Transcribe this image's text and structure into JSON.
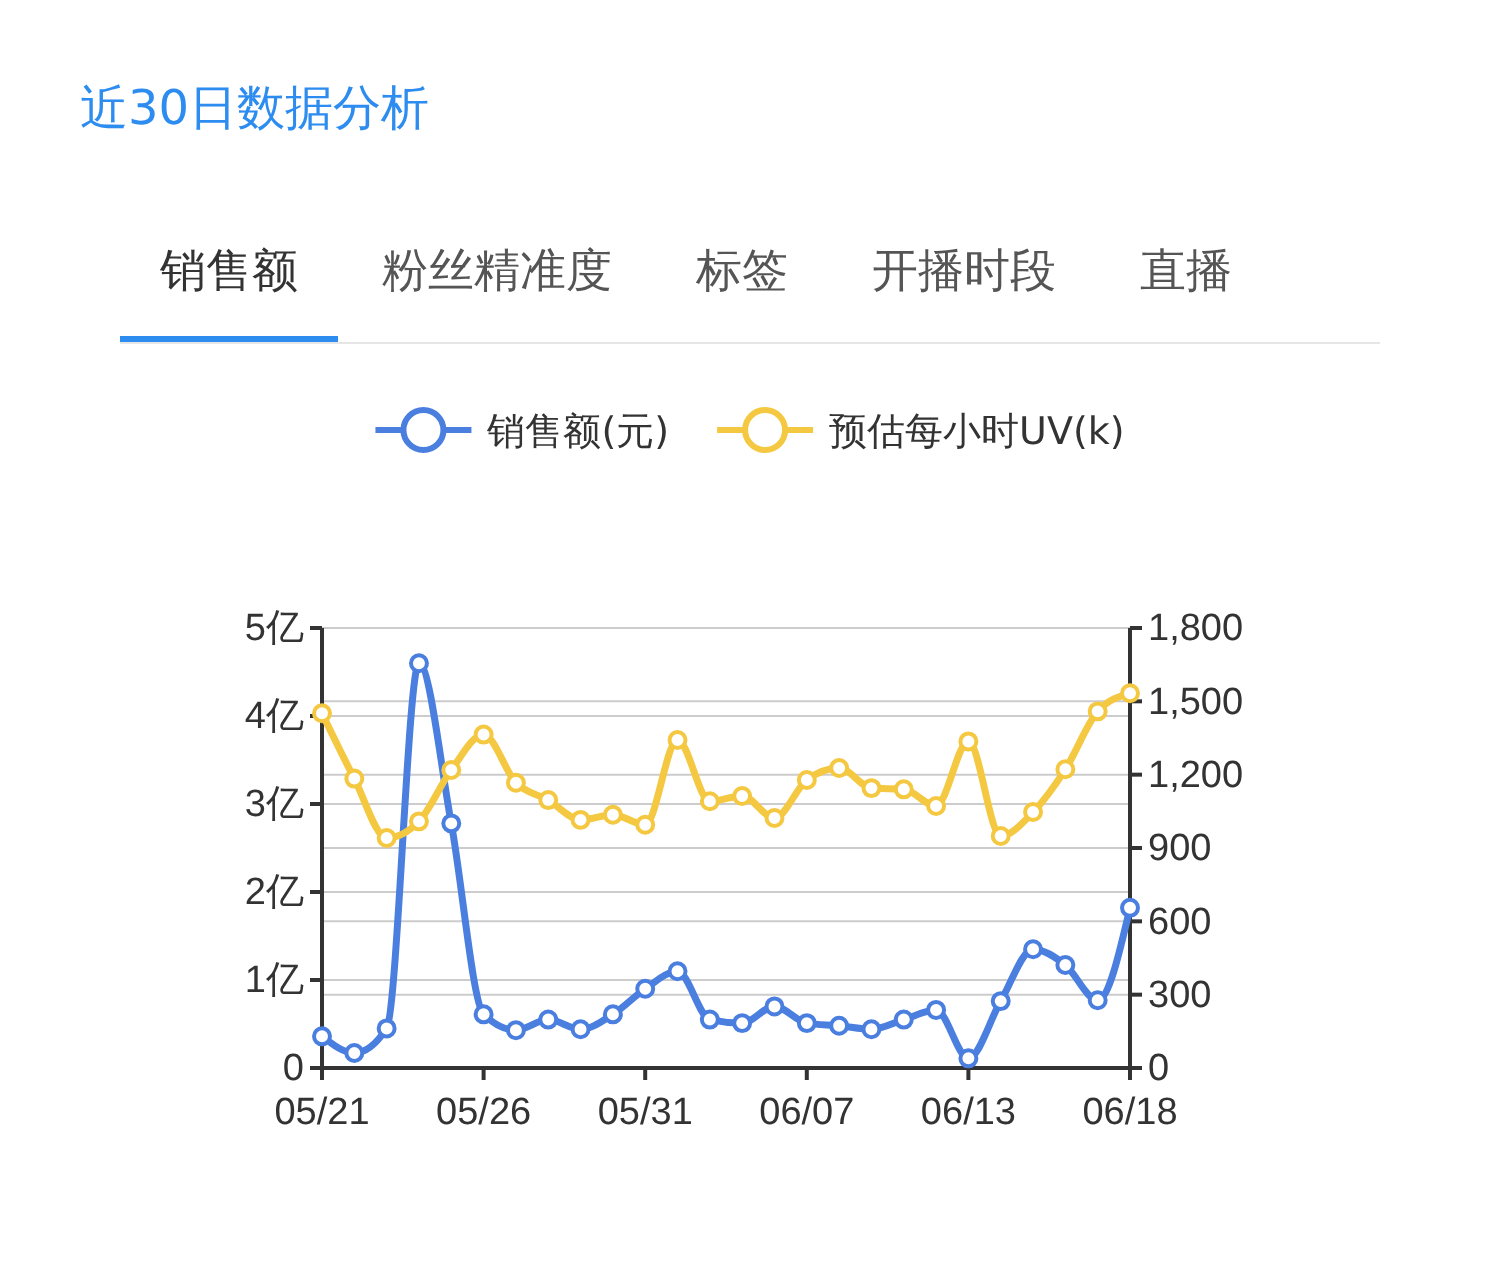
{
  "chart_data": {
    "type": "line",
    "title": "近30日数据分析",
    "annotations": [
      "销售额",
      "粉丝精准度",
      "标签",
      "开播时段",
      "直播"
    ],
    "categories": [
      "05/21",
      null,
      null,
      null,
      null,
      "05/26",
      null,
      null,
      null,
      null,
      "05/31",
      null,
      null,
      null,
      null,
      "06/07",
      null,
      null,
      null,
      null,
      "06/13",
      null,
      null,
      null,
      null,
      "06/18"
    ],
    "series": [
      {
        "name": "销售额(元)",
        "color": "#4a7fe0",
        "values": [
          0.36,
          0.17,
          0.45,
          4.6,
          2.78,
          0.61,
          0.43,
          0.55,
          0.44,
          0.61,
          0.9,
          1.1,
          0.55,
          0.51,
          0.7,
          0.51,
          0.48,
          0.44,
          0.55,
          0.66,
          0.11,
          0.76,
          1.35,
          1.17,
          0.77,
          1.82
        ]
      },
      {
        "name": "预估每小时UV(k)",
        "color": "#f5c842",
        "axis": "y2",
        "values": [
          1451,
          1184,
          941,
          1009,
          1219,
          1364,
          1167,
          1096,
          1015,
          1036,
          995,
          1342,
          1091,
          1113,
          1023,
          1178,
          1227,
          1145,
          1140,
          1072,
          1336,
          949,
          1047,
          1222,
          1459,
          1533
        ]
      }
    ],
    "ylim": [
      0,
      5
    ],
    "yticks": [
      0,
      {
        "value": 1,
        "label": "1亿"
      },
      {
        "value": 2,
        "label": "2亿"
      },
      {
        "value": 3,
        "label": "3亿"
      },
      {
        "value": 4,
        "label": "4亿"
      },
      {
        "value": 5,
        "label": "5亿"
      }
    ],
    "y2lim": [
      0,
      1800
    ],
    "y2ticks": [
      0,
      300,
      600,
      900,
      {
        "value": 1200,
        "label": "1,200"
      },
      {
        "value": 1500,
        "label": "1,500"
      },
      {
        "value": 1800,
        "label": "1,800"
      }
    ],
    "grid": true,
    "legend": "top",
    "marker": "circle",
    "line_style": "solid"
  }
}
